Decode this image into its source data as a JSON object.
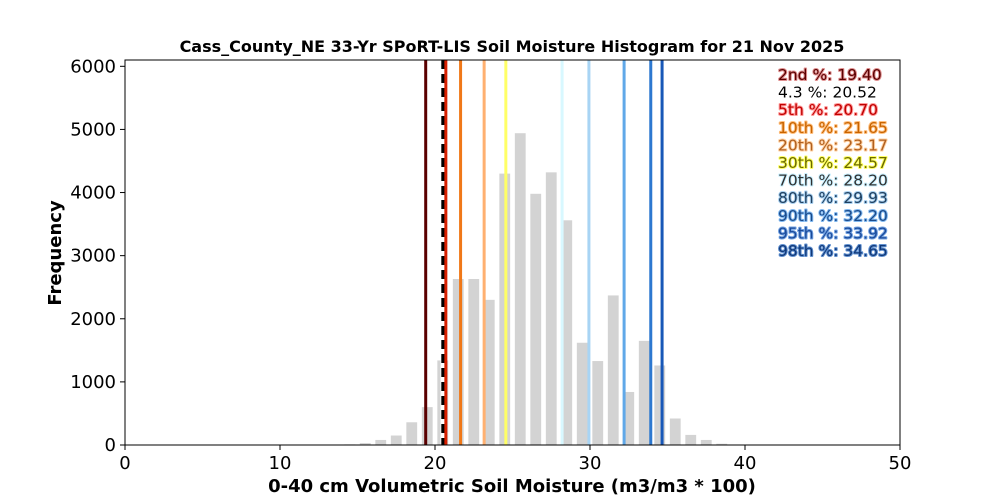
{
  "chart_data": {
    "type": "bar",
    "title": "Cass_County_NE 33-Yr SPoRT-LIS Soil Moisture Histogram for 21 Nov 2025",
    "xlabel": "0-40 cm Volumetric Soil Moisture (m3/m3 * 100)",
    "ylabel": "Frequency",
    "xlim": [
      0,
      50
    ],
    "ylim": [
      0,
      6100
    ],
    "xticks": [
      "0",
      "10",
      "20",
      "30",
      "40",
      "50"
    ],
    "yticks": [
      "0",
      "1000",
      "2000",
      "3000",
      "4000",
      "5000",
      "6000"
    ],
    "bar_width": 0.7,
    "bar_color": "#d3d3d3",
    "bars": [
      {
        "x": 14.5,
        "value": 10
      },
      {
        "x": 15.5,
        "value": 30
      },
      {
        "x": 16.5,
        "value": 80
      },
      {
        "x": 17.5,
        "value": 150
      },
      {
        "x": 18.5,
        "value": 360
      },
      {
        "x": 19.5,
        "value": 600
      },
      {
        "x": 20.5,
        "value": 1340
      },
      {
        "x": 21.5,
        "value": 2630
      },
      {
        "x": 22.5,
        "value": 2630
      },
      {
        "x": 23.5,
        "value": 2300
      },
      {
        "x": 24.5,
        "value": 4300
      },
      {
        "x": 25.5,
        "value": 4940
      },
      {
        "x": 26.5,
        "value": 3980
      },
      {
        "x": 27.5,
        "value": 4320
      },
      {
        "x": 28.5,
        "value": 3560
      },
      {
        "x": 29.5,
        "value": 1620
      },
      {
        "x": 30.5,
        "value": 1330
      },
      {
        "x": 31.5,
        "value": 2370
      },
      {
        "x": 32.5,
        "value": 840
      },
      {
        "x": 33.5,
        "value": 1650
      },
      {
        "x": 34.5,
        "value": 1260
      },
      {
        "x": 35.5,
        "value": 420
      },
      {
        "x": 36.5,
        "value": 160
      },
      {
        "x": 37.5,
        "value": 80
      },
      {
        "x": 38.5,
        "value": 20
      }
    ],
    "percentile_lines": [
      {
        "label": "2nd %: 19.40",
        "value": 19.4,
        "line_color": "#5a0000",
        "text_color": "#5a0000",
        "outline": "#e09090",
        "dashed": false
      },
      {
        "label": "4.3 %: 20.52",
        "value": 20.52,
        "line_color": "#000000",
        "text_color": "#000000",
        "outline": "#ffffff",
        "dashed": true
      },
      {
        "label": "5th %: 20.70",
        "value": 20.7,
        "line_color": "#d62000",
        "text_color": "#c00000",
        "outline": "#ff9999",
        "dashed": false
      },
      {
        "label": "10th %: 21.65",
        "value": 21.65,
        "line_color": "#f07818",
        "text_color": "#c86400",
        "outline": "#ffc080",
        "dashed": false
      },
      {
        "label": "20th %: 23.17",
        "value": 23.17,
        "line_color": "#ffb070",
        "text_color": "#b06020",
        "outline": "#ffd0a0",
        "dashed": false
      },
      {
        "label": "30th %: 24.57",
        "value": 24.57,
        "line_color": "#ffff66",
        "text_color": "#6a6a00",
        "outline": "#ffff60",
        "dashed": false
      },
      {
        "label": "70th %: 28.20",
        "value": 28.2,
        "line_color": "#d8f8ff",
        "text_color": "#303030",
        "outline": "#c8f0ff",
        "dashed": false
      },
      {
        "label": "80th %: 29.93",
        "value": 29.93,
        "line_color": "#a8d4f4",
        "text_color": "#204060",
        "outline": "#a8d0f0",
        "dashed": false
      },
      {
        "label": "90th %: 32.20",
        "value": 32.2,
        "line_color": "#60a8e8",
        "text_color": "#1a4a8a",
        "outline": "#80b8f0",
        "dashed": false
      },
      {
        "label": "95th %: 33.92",
        "value": 33.92,
        "line_color": "#2d78d0",
        "text_color": "#1a4a9a",
        "outline": "#70a0e0",
        "dashed": false
      },
      {
        "label": "98th %: 34.65",
        "value": 34.65,
        "line_color": "#1858b8",
        "text_color": "#103878",
        "outline": "#6090d0",
        "dashed": false
      }
    ]
  }
}
